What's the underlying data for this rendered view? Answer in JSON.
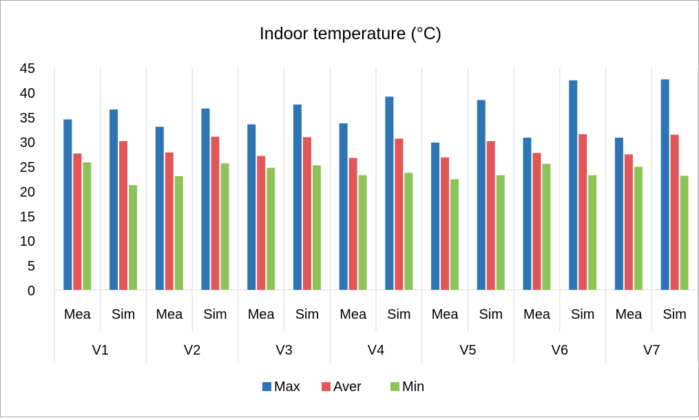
{
  "chart_data": {
    "type": "bar",
    "title": "Indoor temperature (°C)",
    "xlabel": "",
    "ylabel": "",
    "ylim": [
      0,
      45
    ],
    "yticks": [
      "0",
      "5",
      "10",
      "15",
      "20",
      "25",
      "30",
      "35",
      "40",
      "45"
    ],
    "grid": "vertical category separators",
    "legend_position": "bottom",
    "groups": [
      "V1",
      "V2",
      "V3",
      "V4",
      "V5",
      "V6",
      "V7"
    ],
    "subcategories": [
      "Mea",
      "Sim"
    ],
    "categories": [
      "Mea",
      "Sim",
      "Mea",
      "Sim",
      "Mea",
      "Sim",
      "Mea",
      "Sim",
      "Mea",
      "Sim",
      "Mea",
      "Sim",
      "Mea",
      "Sim"
    ],
    "series": [
      {
        "name": "Max",
        "color": "#2e75b6",
        "values": [
          34.5,
          36.5,
          33.0,
          36.7,
          33.5,
          37.5,
          33.7,
          39.1,
          29.8,
          38.4,
          30.8,
          42.4,
          30.8,
          42.6
        ]
      },
      {
        "name": "Aver",
        "color": "#e15759",
        "values": [
          27.6,
          30.1,
          27.8,
          31.0,
          27.1,
          30.9,
          26.7,
          30.6,
          26.8,
          30.1,
          27.7,
          31.5,
          27.4,
          31.4
        ]
      },
      {
        "name": "Min",
        "color": "#8dc45a",
        "values": [
          25.8,
          21.2,
          23.0,
          25.6,
          24.7,
          25.2,
          23.2,
          23.7,
          22.4,
          23.2,
          25.5,
          23.2,
          24.9,
          23.1
        ]
      }
    ]
  }
}
